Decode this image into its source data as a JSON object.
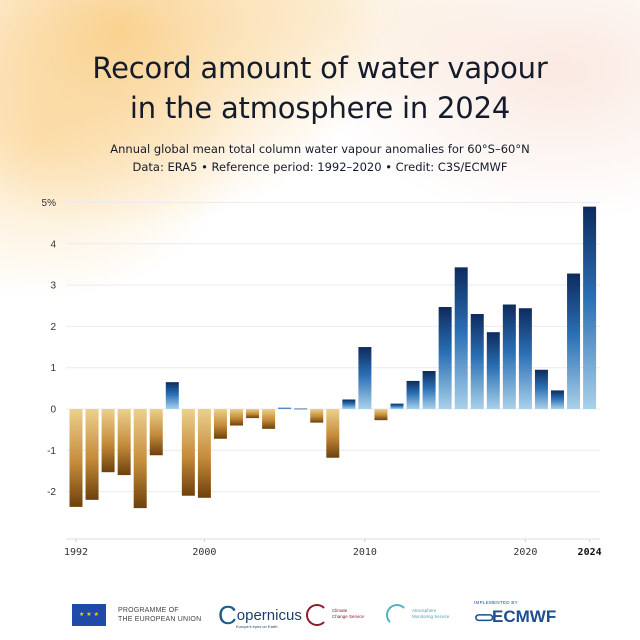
{
  "header": {
    "title_line1": "Record amount of water vapour",
    "title_line2": "in the atmosphere in 2024",
    "subtitle_line1": "Annual global mean total column water vapour anomalies for 60°S–60°N",
    "subtitle_line2": "Data: ERA5 • Reference period: 1992–2020 • Credit: C3S/ECMWF"
  },
  "chart_data": {
    "type": "bar",
    "title": "Record amount of water vapour in the atmosphere in 2024",
    "subtitle": "Annual global mean total column water vapour anomalies for 60°S–60°N",
    "xlabel": "",
    "ylabel": "%",
    "ylim": [
      -3,
      5
    ],
    "yticks": [
      5,
      4,
      3,
      2,
      1,
      0,
      -1,
      -2
    ],
    "ytick_labels": [
      "5%",
      "4",
      "3",
      "2",
      "1",
      "0",
      "-1",
      "-2"
    ],
    "xticks": [
      1992,
      2000,
      2010,
      2020,
      2024
    ],
    "xtick_labels": [
      "1992",
      "2000",
      "2010",
      "2020",
      "2024"
    ],
    "grid": true,
    "legend": "none",
    "colors": {
      "positive_dark": "#0d2b5e",
      "positive_light": "#a9d1ea",
      "negative_dark": "#7a4a10",
      "negative_light": "#ecd08e"
    },
    "categories": [
      1992,
      1993,
      1994,
      1995,
      1996,
      1997,
      1998,
      1999,
      2000,
      2001,
      2002,
      2003,
      2004,
      2005,
      2006,
      2007,
      2008,
      2009,
      2010,
      2011,
      2012,
      2013,
      2014,
      2015,
      2016,
      2017,
      2018,
      2019,
      2020,
      2021,
      2022,
      2023,
      2024
    ],
    "values": [
      -2.37,
      -2.2,
      -1.53,
      -1.6,
      -2.4,
      -1.12,
      0.65,
      -2.1,
      -2.15,
      -0.72,
      -0.4,
      -0.22,
      -0.48,
      0.03,
      0.01,
      -0.33,
      -1.18,
      0.23,
      1.5,
      -0.27,
      0.13,
      0.68,
      0.92,
      2.47,
      3.43,
      2.3,
      1.86,
      2.53,
      2.44,
      0.95,
      0.45,
      3.28,
      4.9
    ]
  },
  "footer": {
    "eu_line1": "PROGRAMME OF",
    "eu_line2": "THE EUROPEAN UNION",
    "copernicus_c": "C",
    "copernicus_rest": "opernicus",
    "copernicus_sub": "Europe's eyes on Earth",
    "c3s_line1": "Climate",
    "c3s_line2": "Change Service",
    "cams_line1": "Atmosphere",
    "cams_line2": "Monitoring Service",
    "ecmwf_small": "IMPLEMENTED BY",
    "ecmwf_name": "ECMWF",
    "eu_flag_stars": "★ ★ ★"
  }
}
